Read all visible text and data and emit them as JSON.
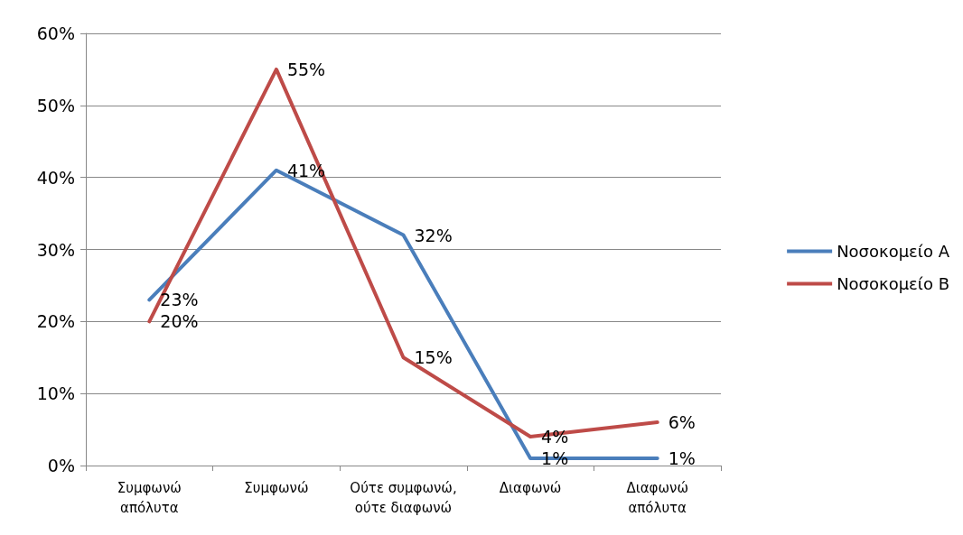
{
  "chart_data": {
    "type": "line",
    "categories": [
      "Συμφωνώ\nαπόλυτα",
      "Συμφωνώ",
      "Ούτε συμφωνώ,\nούτε διαφωνώ",
      "Διαφωνώ",
      "Διαφωνώ\nαπόλυτα"
    ],
    "series": [
      {
        "name": "Νοσοκομείο A",
        "color": "#4a7ebb",
        "values": [
          23,
          41,
          32,
          1,
          1
        ],
        "value_labels": [
          "23%",
          "41%",
          "32%",
          "1%",
          "1%"
        ]
      },
      {
        "name": "Νοσοκομείο B",
        "color": "#be4b48",
        "values": [
          20,
          55,
          15,
          4,
          6
        ],
        "value_labels": [
          "20%",
          "55%",
          "15%",
          "4%",
          "6%"
        ]
      }
    ],
    "ylim": [
      0,
      60
    ],
    "yticks": [
      {
        "value": 0,
        "label": "0%"
      },
      {
        "value": 10,
        "label": "10%"
      },
      {
        "value": 20,
        "label": "20%"
      },
      {
        "value": 30,
        "label": "30%"
      },
      {
        "value": 40,
        "label": "40%"
      },
      {
        "value": 50,
        "label": "50%"
      },
      {
        "value": 60,
        "label": "60%"
      }
    ],
    "grid": "y",
    "legend": "right",
    "marker": "none",
    "line_style": "solid"
  }
}
